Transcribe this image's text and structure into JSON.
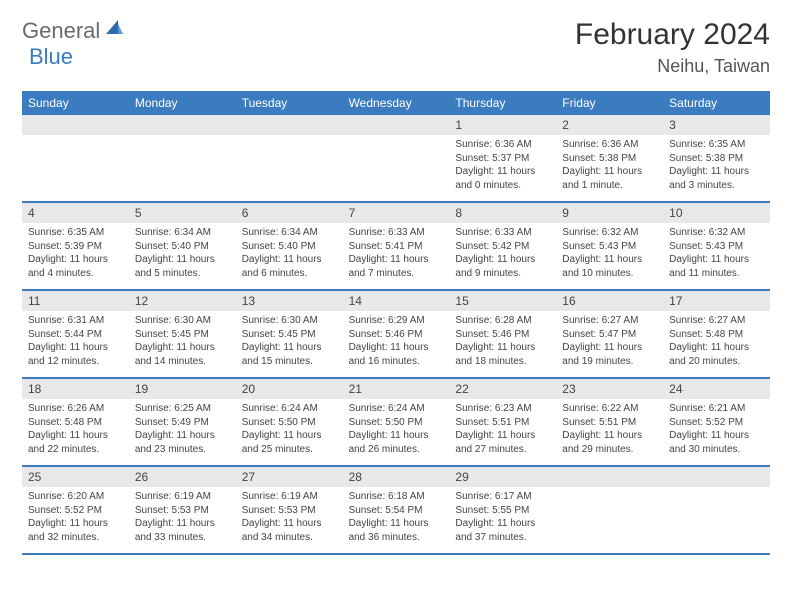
{
  "logo": {
    "part1": "General",
    "part2": "Blue"
  },
  "title": "February 2024",
  "location": "Neihu, Taiwan",
  "colors": {
    "header_blue": "#3b7bbf",
    "daynum_bg": "#e8e8e8",
    "text": "#333333"
  },
  "weekdays": [
    "Sunday",
    "Monday",
    "Tuesday",
    "Wednesday",
    "Thursday",
    "Friday",
    "Saturday"
  ],
  "weeks": [
    [
      null,
      null,
      null,
      null,
      {
        "n": "1",
        "sr": "Sunrise: 6:36 AM",
        "ss": "Sunset: 5:37 PM",
        "d1": "Daylight: 11 hours",
        "d2": "and 0 minutes."
      },
      {
        "n": "2",
        "sr": "Sunrise: 6:36 AM",
        "ss": "Sunset: 5:38 PM",
        "d1": "Daylight: 11 hours",
        "d2": "and 1 minute."
      },
      {
        "n": "3",
        "sr": "Sunrise: 6:35 AM",
        "ss": "Sunset: 5:38 PM",
        "d1": "Daylight: 11 hours",
        "d2": "and 3 minutes."
      }
    ],
    [
      {
        "n": "4",
        "sr": "Sunrise: 6:35 AM",
        "ss": "Sunset: 5:39 PM",
        "d1": "Daylight: 11 hours",
        "d2": "and 4 minutes."
      },
      {
        "n": "5",
        "sr": "Sunrise: 6:34 AM",
        "ss": "Sunset: 5:40 PM",
        "d1": "Daylight: 11 hours",
        "d2": "and 5 minutes."
      },
      {
        "n": "6",
        "sr": "Sunrise: 6:34 AM",
        "ss": "Sunset: 5:40 PM",
        "d1": "Daylight: 11 hours",
        "d2": "and 6 minutes."
      },
      {
        "n": "7",
        "sr": "Sunrise: 6:33 AM",
        "ss": "Sunset: 5:41 PM",
        "d1": "Daylight: 11 hours",
        "d2": "and 7 minutes."
      },
      {
        "n": "8",
        "sr": "Sunrise: 6:33 AM",
        "ss": "Sunset: 5:42 PM",
        "d1": "Daylight: 11 hours",
        "d2": "and 9 minutes."
      },
      {
        "n": "9",
        "sr": "Sunrise: 6:32 AM",
        "ss": "Sunset: 5:43 PM",
        "d1": "Daylight: 11 hours",
        "d2": "and 10 minutes."
      },
      {
        "n": "10",
        "sr": "Sunrise: 6:32 AM",
        "ss": "Sunset: 5:43 PM",
        "d1": "Daylight: 11 hours",
        "d2": "and 11 minutes."
      }
    ],
    [
      {
        "n": "11",
        "sr": "Sunrise: 6:31 AM",
        "ss": "Sunset: 5:44 PM",
        "d1": "Daylight: 11 hours",
        "d2": "and 12 minutes."
      },
      {
        "n": "12",
        "sr": "Sunrise: 6:30 AM",
        "ss": "Sunset: 5:45 PM",
        "d1": "Daylight: 11 hours",
        "d2": "and 14 minutes."
      },
      {
        "n": "13",
        "sr": "Sunrise: 6:30 AM",
        "ss": "Sunset: 5:45 PM",
        "d1": "Daylight: 11 hours",
        "d2": "and 15 minutes."
      },
      {
        "n": "14",
        "sr": "Sunrise: 6:29 AM",
        "ss": "Sunset: 5:46 PM",
        "d1": "Daylight: 11 hours",
        "d2": "and 16 minutes."
      },
      {
        "n": "15",
        "sr": "Sunrise: 6:28 AM",
        "ss": "Sunset: 5:46 PM",
        "d1": "Daylight: 11 hours",
        "d2": "and 18 minutes."
      },
      {
        "n": "16",
        "sr": "Sunrise: 6:27 AM",
        "ss": "Sunset: 5:47 PM",
        "d1": "Daylight: 11 hours",
        "d2": "and 19 minutes."
      },
      {
        "n": "17",
        "sr": "Sunrise: 6:27 AM",
        "ss": "Sunset: 5:48 PM",
        "d1": "Daylight: 11 hours",
        "d2": "and 20 minutes."
      }
    ],
    [
      {
        "n": "18",
        "sr": "Sunrise: 6:26 AM",
        "ss": "Sunset: 5:48 PM",
        "d1": "Daylight: 11 hours",
        "d2": "and 22 minutes."
      },
      {
        "n": "19",
        "sr": "Sunrise: 6:25 AM",
        "ss": "Sunset: 5:49 PM",
        "d1": "Daylight: 11 hours",
        "d2": "and 23 minutes."
      },
      {
        "n": "20",
        "sr": "Sunrise: 6:24 AM",
        "ss": "Sunset: 5:50 PM",
        "d1": "Daylight: 11 hours",
        "d2": "and 25 minutes."
      },
      {
        "n": "21",
        "sr": "Sunrise: 6:24 AM",
        "ss": "Sunset: 5:50 PM",
        "d1": "Daylight: 11 hours",
        "d2": "and 26 minutes."
      },
      {
        "n": "22",
        "sr": "Sunrise: 6:23 AM",
        "ss": "Sunset: 5:51 PM",
        "d1": "Daylight: 11 hours",
        "d2": "and 27 minutes."
      },
      {
        "n": "23",
        "sr": "Sunrise: 6:22 AM",
        "ss": "Sunset: 5:51 PM",
        "d1": "Daylight: 11 hours",
        "d2": "and 29 minutes."
      },
      {
        "n": "24",
        "sr": "Sunrise: 6:21 AM",
        "ss": "Sunset: 5:52 PM",
        "d1": "Daylight: 11 hours",
        "d2": "and 30 minutes."
      }
    ],
    [
      {
        "n": "25",
        "sr": "Sunrise: 6:20 AM",
        "ss": "Sunset: 5:52 PM",
        "d1": "Daylight: 11 hours",
        "d2": "and 32 minutes."
      },
      {
        "n": "26",
        "sr": "Sunrise: 6:19 AM",
        "ss": "Sunset: 5:53 PM",
        "d1": "Daylight: 11 hours",
        "d2": "and 33 minutes."
      },
      {
        "n": "27",
        "sr": "Sunrise: 6:19 AM",
        "ss": "Sunset: 5:53 PM",
        "d1": "Daylight: 11 hours",
        "d2": "and 34 minutes."
      },
      {
        "n": "28",
        "sr": "Sunrise: 6:18 AM",
        "ss": "Sunset: 5:54 PM",
        "d1": "Daylight: 11 hours",
        "d2": "and 36 minutes."
      },
      {
        "n": "29",
        "sr": "Sunrise: 6:17 AM",
        "ss": "Sunset: 5:55 PM",
        "d1": "Daylight: 11 hours",
        "d2": "and 37 minutes."
      },
      null,
      null
    ]
  ]
}
